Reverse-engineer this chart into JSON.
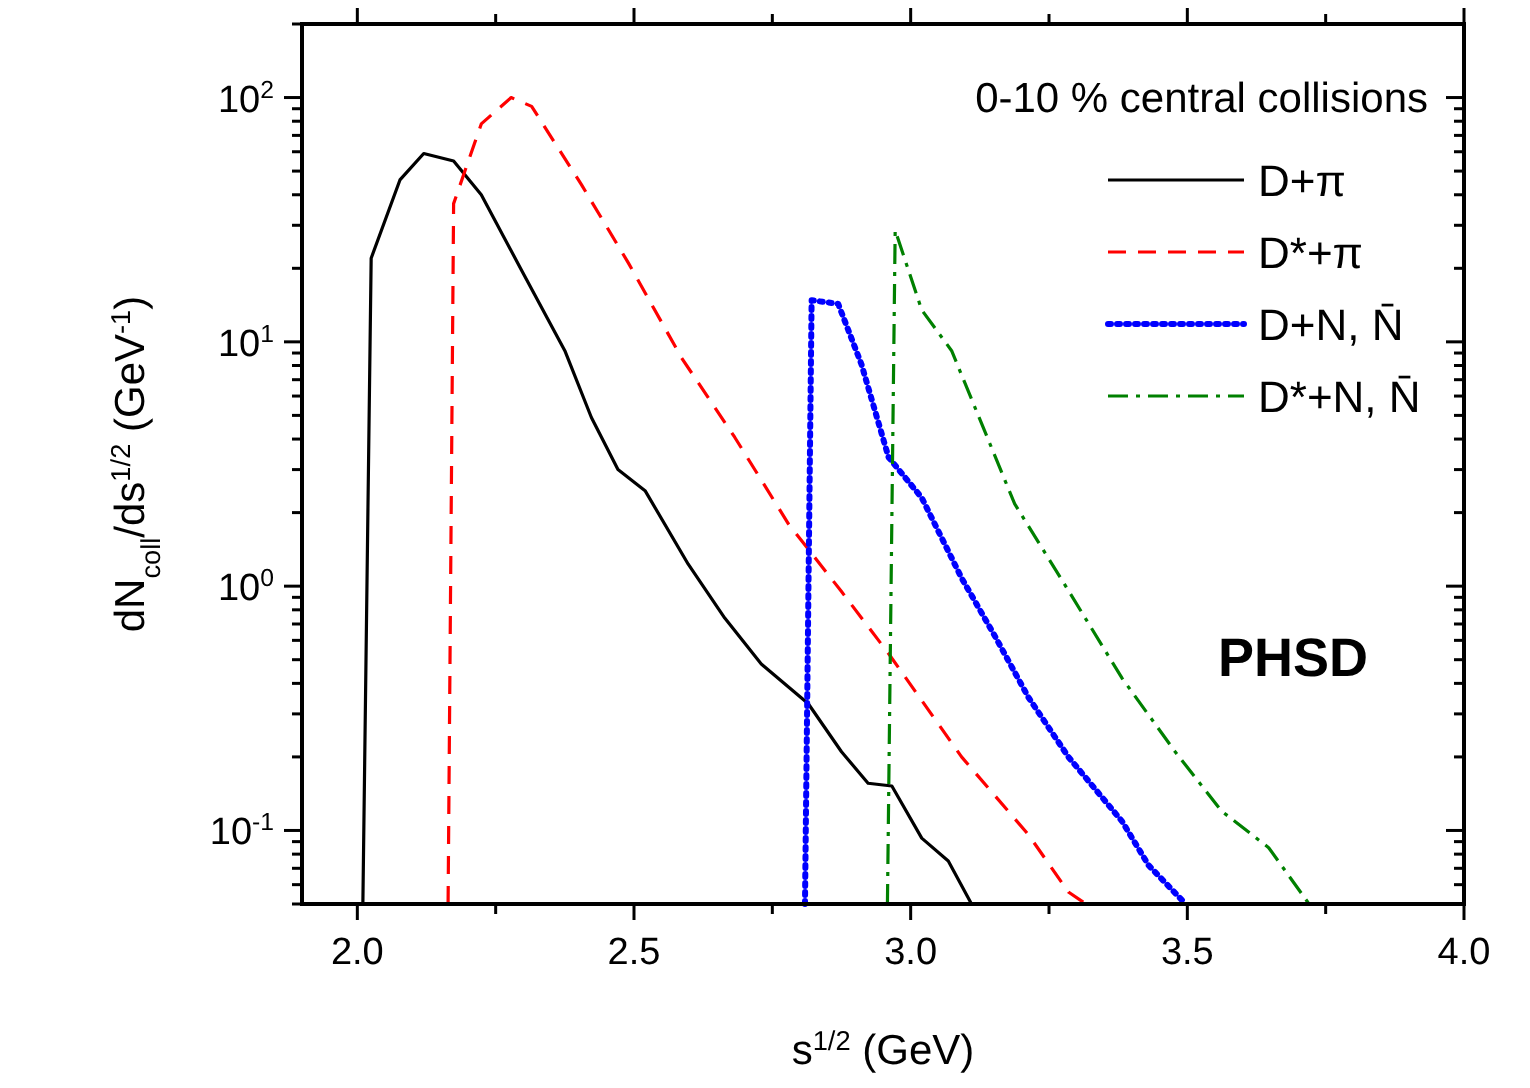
{
  "chart_data": {
    "type": "line",
    "xlabel": "s$^{1/2}$ (GeV)",
    "ylabel": "dN$_{coll}$/ds$^{1/2}$ (GeV$^{-1}$)",
    "legend_title": "0-10 % central collisions",
    "legend": "top right",
    "log": "y",
    "grid": false,
    "annotations": [
      "PHSD"
    ],
    "xlim": [
      1.9,
      4.0
    ],
    "xticks": [
      {
        "value": 2,
        "label": "2.0"
      },
      {
        "value": 2.25,
        "label": null
      },
      {
        "value": 2.5,
        "label": "2.5"
      },
      {
        "value": 2.75,
        "label": null
      },
      {
        "value": 3,
        "label": "3.0"
      },
      {
        "value": 3.25,
        "label": null
      },
      {
        "value": 3.5,
        "label": "3.5"
      },
      {
        "value": 3.75,
        "label": null
      },
      {
        "value": 4,
        "label": "4.0"
      }
    ],
    "ylim": [
      0.05,
      200
    ],
    "yticks": [
      {
        "value": 0.05,
        "label": null
      },
      {
        "value": 0.06,
        "label": null
      },
      {
        "value": 0.07,
        "label": null
      },
      {
        "value": 0.08,
        "label": null
      },
      {
        "value": 0.09,
        "label": null
      },
      {
        "value": 0.1,
        "label": "10$^{-1}$"
      },
      {
        "value": 0.2,
        "label": null
      },
      {
        "value": 0.3,
        "label": null
      },
      {
        "value": 0.4,
        "label": null
      },
      {
        "value": 0.5,
        "label": null
      },
      {
        "value": 0.6,
        "label": null
      },
      {
        "value": 0.7,
        "label": null
      },
      {
        "value": 0.8,
        "label": null
      },
      {
        "value": 0.9,
        "label": null
      },
      {
        "value": 1,
        "label": "10$^{0}$"
      },
      {
        "value": 2,
        "label": null
      },
      {
        "value": 3,
        "label": null
      },
      {
        "value": 4,
        "label": null
      },
      {
        "value": 5,
        "label": null
      },
      {
        "value": 6,
        "label": null
      },
      {
        "value": 7,
        "label": null
      },
      {
        "value": 8,
        "label": null
      },
      {
        "value": 9,
        "label": null
      },
      {
        "value": 10,
        "label": "10$^{1}$"
      },
      {
        "value": 20,
        "label": null
      },
      {
        "value": 30,
        "label": null
      },
      {
        "value": 40,
        "label": null
      },
      {
        "value": 50,
        "label": null
      },
      {
        "value": 60,
        "label": null
      },
      {
        "value": 70,
        "label": null
      },
      {
        "value": 80,
        "label": null
      },
      {
        "value": 90,
        "label": null
      },
      {
        "value": 100,
        "label": "10$^{2}$"
      },
      {
        "value": 200,
        "label": null
      }
    ],
    "series": [
      {
        "name": "D+π",
        "color": "#000000",
        "line_style": "solid",
        "x": [
          2.01,
          2.025,
          2.077,
          2.12,
          2.174,
          2.224,
          2.297,
          2.375,
          2.423,
          2.471,
          2.52,
          2.598,
          2.664,
          2.73,
          2.815,
          2.875,
          2.923,
          2.966,
          3.02,
          3.068,
          3.11
        ],
        "values": [
          0.05,
          22,
          46,
          59,
          55,
          40,
          19.6,
          9.2,
          4.9,
          3.0,
          2.46,
          1.23,
          0.74,
          0.48,
          0.33,
          0.21,
          0.156,
          0.152,
          0.093,
          0.075,
          0.05
        ]
      },
      {
        "name": "D*+π",
        "color": "#ff0000",
        "line_style": "dashed",
        "x": [
          2.164,
          2.174,
          2.224,
          2.278,
          2.315,
          2.405,
          2.49,
          2.586,
          2.682,
          2.779,
          2.875,
          2.96,
          3.092,
          3.213,
          3.285,
          3.317
        ],
        "values": [
          0.05,
          36.8,
          78,
          100,
          92,
          44,
          21,
          8.6,
          4.07,
          1.8,
          0.95,
          0.53,
          0.2,
          0.096,
          0.056,
          0.05
        ]
      },
      {
        "name": "D+N, N̄",
        "color": "#0000ff",
        "line_style": "dotted",
        "x": [
          2.809,
          2.821,
          2.869,
          2.911,
          2.96,
          3.02,
          3.092,
          3.153,
          3.213,
          3.285,
          3.382,
          3.43,
          3.497
        ],
        "values": [
          0.05,
          14.8,
          14.3,
          8.1,
          3.37,
          2.3,
          1.08,
          0.62,
          0.35,
          0.2,
          0.109,
          0.072,
          0.05
        ]
      },
      {
        "name": "D*+N, N̄",
        "color": "#008000",
        "line_style": "dashdot",
        "x": [
          2.958,
          2.972,
          3.02,
          3.074,
          3.188,
          3.285,
          3.382,
          3.478,
          3.562,
          3.647,
          3.72
        ],
        "values": [
          0.05,
          28.6,
          13.5,
          9.2,
          2.17,
          0.96,
          0.42,
          0.21,
          0.12,
          0.085,
          0.05
        ]
      }
    ]
  }
}
